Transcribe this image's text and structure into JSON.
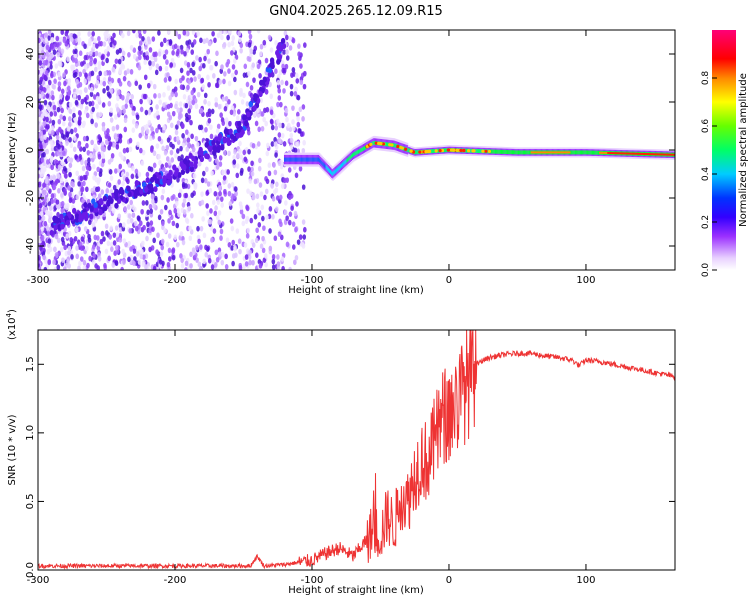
{
  "title": "GN04.2025.265.12.09.R15",
  "chart_data": [
    {
      "type": "heatmap",
      "xlabel": "Height of straight line (km)",
      "ylabel": "Frequency (Hz)",
      "xlim": [
        -300,
        165
      ],
      "ylim": [
        -50,
        50
      ],
      "xticks": [
        -300,
        -200,
        -100,
        0,
        100
      ],
      "yticks": [
        -40,
        -20,
        0,
        20,
        40
      ],
      "colorbar": {
        "label": "Normalized spectral amplitude",
        "range": [
          0,
          1
        ],
        "ticks": [
          0.0,
          0.2,
          0.4,
          0.6,
          0.8
        ],
        "colormap": [
          "#ffffff",
          "#cc88ff",
          "#6600ff",
          "#0000ff",
          "#00ffff",
          "#00ff00",
          "#ffff00",
          "#ff0000",
          "#ff00ff"
        ]
      },
      "features": {
        "chirp_track": [
          [
            -290,
            -32
          ],
          [
            -250,
            -22
          ],
          [
            -200,
            -10
          ],
          [
            -150,
            10
          ],
          [
            -120,
            45
          ]
        ],
        "carrier_track": [
          [
            -120,
            -4
          ],
          [
            -95,
            -4
          ],
          [
            -85,
            -10
          ],
          [
            -70,
            -2
          ],
          [
            -55,
            3
          ],
          [
            -40,
            2
          ],
          [
            -25,
            -1
          ],
          [
            0,
            0
          ],
          [
            50,
            -1
          ],
          [
            100,
            -1
          ],
          [
            165,
            -2
          ]
        ]
      }
    },
    {
      "type": "line",
      "xlabel": "Height of straight line (km)",
      "ylabel": "SNR (10 * v/v)",
      "scale_label": "(x10",
      "scale_exp": "4",
      "ylabel_suffix": ")",
      "xlim": [
        -300,
        165
      ],
      "ylim": [
        0,
        1.75
      ],
      "xticks": [
        -300,
        -200,
        -100,
        0,
        100
      ],
      "yticks": [
        0.0,
        0.5,
        1.0,
        1.5
      ],
      "color": "#ee3333",
      "series": [
        {
          "x": [
            -300,
            -200,
            -145,
            -140,
            -135,
            -120,
            -100,
            -90,
            -80,
            -70,
            -60,
            -55,
            -50,
            -45,
            -40,
            -35,
            -30,
            -25,
            -20,
            -15,
            -10,
            -5,
            0,
            5,
            10,
            15,
            20,
            25,
            30,
            40,
            50,
            60,
            70,
            80,
            90,
            95,
            100,
            110,
            120,
            130,
            140,
            150,
            165
          ],
          "y": [
            0.03,
            0.03,
            0.03,
            0.1,
            0.03,
            0.04,
            0.07,
            0.12,
            0.16,
            0.1,
            0.22,
            0.3,
            0.25,
            0.4,
            0.32,
            0.55,
            0.5,
            0.7,
            0.82,
            0.78,
            0.95,
            1.1,
            1.15,
            1.2,
            1.3,
            1.4,
            1.5,
            1.53,
            1.55,
            1.57,
            1.58,
            1.58,
            1.56,
            1.55,
            1.53,
            1.49,
            1.53,
            1.52,
            1.5,
            1.48,
            1.46,
            1.44,
            1.41
          ]
        }
      ]
    }
  ]
}
